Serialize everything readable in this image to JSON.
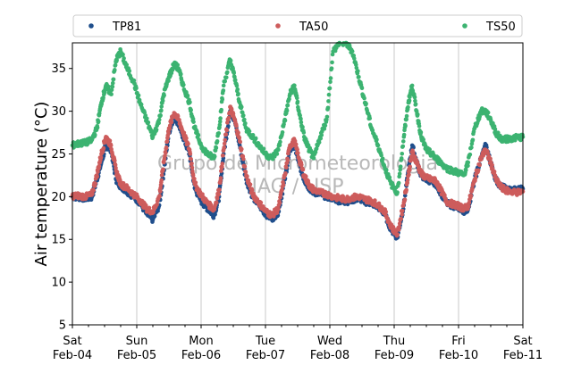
{
  "chart_data": {
    "type": "scatter",
    "ylabel": "Air temperature (°C)",
    "xlabel": "",
    "ylim": [
      5,
      38
    ],
    "xlim": [
      "2023-02-04",
      "2023-02-11"
    ],
    "yticks": [
      5,
      10,
      15,
      20,
      25,
      30,
      35
    ],
    "xticks": [
      {
        "day": "Sat",
        "date": "Feb-04"
      },
      {
        "day": "Sun",
        "date": "Feb-05"
      },
      {
        "day": "Mon",
        "date": "Feb-06"
      },
      {
        "day": "Tue",
        "date": "Feb-07"
      },
      {
        "day": "Wed",
        "date": "Feb-08"
      },
      {
        "day": "Thu",
        "date": "Feb-09"
      },
      {
        "day": "Fri",
        "date": "Feb-10"
      },
      {
        "day": "Sat",
        "date": "Feb-11"
      }
    ],
    "grid": "vertical",
    "legend_position": "top",
    "watermark": [
      "Grupo de Micrometeorologia",
      "IAG / USP"
    ],
    "series": [
      {
        "name": "TP81",
        "color": "#1f4e8c",
        "x": [
          0,
          0.1,
          0.2,
          0.3,
          0.38,
          0.45,
          0.52,
          0.6,
          0.68,
          0.75,
          0.85,
          0.95,
          1.05,
          1.15,
          1.25,
          1.35,
          1.42,
          1.5,
          1.58,
          1.65,
          1.72,
          1.82,
          1.9,
          2.0,
          2.1,
          2.2,
          2.28,
          2.35,
          2.45,
          2.52,
          2.6,
          2.7,
          2.8,
          2.9,
          3.0,
          3.1,
          3.2,
          3.3,
          3.38,
          3.45,
          3.52,
          3.6,
          3.68,
          3.75,
          3.85,
          3.95,
          4.05,
          4.15,
          4.25,
          4.35,
          4.45,
          4.55,
          4.65,
          4.75,
          4.85,
          4.95,
          5.05,
          5.15,
          5.22,
          5.28,
          5.35,
          5.42,
          5.5,
          5.58,
          5.65,
          5.72,
          5.82,
          5.92,
          6.0,
          6.08,
          6.15,
          6.25,
          6.35,
          6.42,
          6.5,
          6.58,
          6.65,
          6.72,
          6.8,
          6.9,
          7.0
        ],
        "y": [
          20.0,
          19.9,
          19.8,
          19.9,
          22,
          24,
          26,
          25.5,
          22,
          21.2,
          20.6,
          20.0,
          19.3,
          18,
          17.3,
          19,
          23,
          27.5,
          29.5,
          28.5,
          27,
          25,
          21,
          19.5,
          18.6,
          17.8,
          20,
          25,
          30,
          29,
          26,
          22,
          20,
          19,
          18,
          17.4,
          18.2,
          22,
          25.5,
          26,
          24,
          22,
          21,
          20.5,
          20.3,
          20.0,
          19.8,
          19.5,
          19.4,
          19.6,
          19.8,
          19.4,
          19.2,
          18.8,
          18.0,
          16.2,
          15.2,
          19,
          23,
          26,
          24,
          22.5,
          22,
          21.8,
          21.5,
          20.5,
          19.2,
          18.9,
          18.7,
          18.3,
          18.6,
          22,
          24.5,
          26,
          24,
          22,
          21.2,
          21.0,
          20.8,
          20.8,
          20.9
        ]
      },
      {
        "name": "TA50",
        "color": "#cd5c5c",
        "x": [
          0,
          0.1,
          0.2,
          0.3,
          0.38,
          0.45,
          0.52,
          0.6,
          0.68,
          0.75,
          0.85,
          0.95,
          1.05,
          1.15,
          1.25,
          1.35,
          1.42,
          1.5,
          1.58,
          1.65,
          1.72,
          1.82,
          1.9,
          2.0,
          2.1,
          2.2,
          2.28,
          2.35,
          2.45,
          2.52,
          2.6,
          2.7,
          2.8,
          2.9,
          3.0,
          3.1,
          3.2,
          3.3,
          3.38,
          3.45,
          3.52,
          3.6,
          3.68,
          3.75,
          3.85,
          3.95,
          4.05,
          4.15,
          4.25,
          4.35,
          4.45,
          4.55,
          4.65,
          4.75,
          4.85,
          4.95,
          5.05,
          5.15,
          5.22,
          5.28,
          5.35,
          5.42,
          5.5,
          5.58,
          5.65,
          5.72,
          5.82,
          5.92,
          6.0,
          6.08,
          6.15,
          6.25,
          6.35,
          6.42,
          6.5,
          6.58,
          6.65,
          6.72,
          6.8,
          6.9,
          7.0
        ],
        "y": [
          20.1,
          20.1,
          20.0,
          20.2,
          22.5,
          25,
          27,
          26,
          23,
          21.5,
          21.0,
          20.3,
          19.6,
          18.6,
          18.2,
          20,
          24,
          28,
          29.8,
          29,
          27.5,
          25.5,
          21.5,
          20.2,
          19.2,
          18.5,
          20.8,
          25.5,
          30.5,
          29,
          26.5,
          22.5,
          20.3,
          19.3,
          18.3,
          17.8,
          18.6,
          22.5,
          26,
          26.5,
          24.5,
          22.5,
          21.3,
          20.8,
          20.5,
          20.3,
          20.0,
          19.8,
          19.7,
          19.9,
          20.0,
          19.7,
          19.5,
          19.0,
          18.3,
          16.5,
          15.6,
          19.3,
          22.5,
          25.2,
          24,
          22.7,
          22.2,
          22.0,
          21.8,
          20.8,
          19.4,
          19.1,
          18.9,
          18.6,
          18.9,
          22,
          24.5,
          25.5,
          24,
          22,
          21.2,
          20.8,
          20.6,
          20.5,
          20.6
        ]
      },
      {
        "name": "TS50",
        "color": "#3cb371",
        "x": [
          0,
          0.1,
          0.2,
          0.3,
          0.38,
          0.45,
          0.52,
          0.6,
          0.68,
          0.75,
          0.85,
          0.95,
          1.05,
          1.15,
          1.25,
          1.35,
          1.42,
          1.5,
          1.58,
          1.65,
          1.72,
          1.82,
          1.9,
          2.0,
          2.1,
          2.2,
          2.28,
          2.35,
          2.45,
          2.52,
          2.6,
          2.7,
          2.8,
          2.9,
          3.0,
          3.1,
          3.2,
          3.3,
          3.38,
          3.45,
          3.52,
          3.6,
          3.68,
          3.75,
          3.85,
          3.95,
          4.05,
          4.15,
          4.25,
          4.35,
          4.45,
          4.55,
          4.65,
          4.75,
          4.85,
          4.95,
          5.05,
          5.15,
          5.22,
          5.28,
          5.35,
          5.42,
          5.5,
          5.58,
          5.65,
          5.72,
          5.82,
          5.92,
          6.0,
          6.08,
          6.15,
          6.25,
          6.35,
          6.42,
          6.5,
          6.58,
          6.65,
          6.72,
          6.8,
          6.9,
          7.0
        ],
        "y": [
          26.0,
          26.2,
          26.3,
          26.6,
          28,
          31,
          33,
          32,
          36,
          37,
          35,
          33.5,
          31,
          29,
          27,
          29,
          32,
          34,
          35.5,
          35,
          33,
          31,
          28,
          26,
          25,
          24.5,
          28,
          33,
          36,
          34,
          31,
          28,
          27,
          26,
          25,
          24.5,
          25.5,
          29,
          32,
          33,
          30,
          27,
          25.5,
          24.5,
          27,
          29,
          37,
          38,
          38,
          37,
          34,
          31,
          28,
          26,
          23.5,
          21.5,
          20.5,
          27,
          31,
          33,
          30,
          27,
          25.5,
          25.0,
          24.5,
          24.0,
          23.3,
          23.0,
          22.8,
          22.5,
          24,
          28,
          30,
          30,
          29,
          27.5,
          26.8,
          26.7,
          26.8,
          26.9,
          27.0
        ]
      }
    ]
  }
}
